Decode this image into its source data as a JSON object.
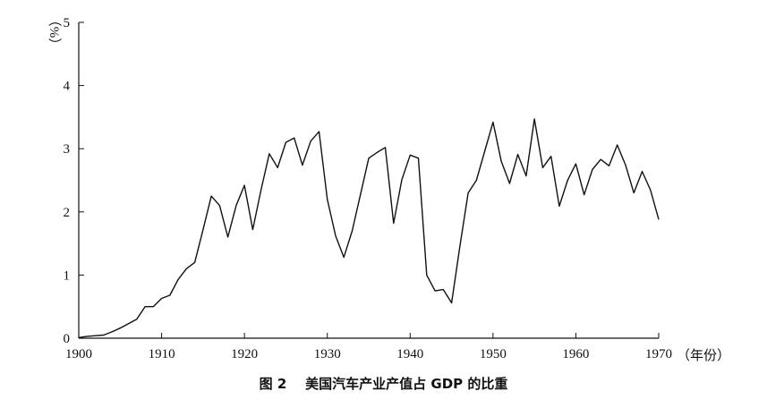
{
  "chart_data": {
    "type": "line",
    "title": "",
    "xlabel": "（年份）",
    "ylabel": "（%）",
    "xlim": [
      1900,
      1970
    ],
    "ylim": [
      0,
      5
    ],
    "xticks": [
      "1900",
      "1910",
      "1920",
      "1930",
      "1940",
      "1950",
      "1960",
      "1970"
    ],
    "yticks": [
      "0",
      "1",
      "2",
      "3",
      "4",
      "5"
    ],
    "grid": false,
    "legend": "none",
    "series": [
      {
        "color": "#111111",
        "x": [
          1900,
          1901,
          1902,
          1903,
          1904,
          1905,
          1906,
          1907,
          1908,
          1909,
          1910,
          1911,
          1912,
          1913,
          1914,
          1915,
          1916,
          1917,
          1918,
          1919,
          1920,
          1921,
          1922,
          1923,
          1924,
          1925,
          1926,
          1927,
          1928,
          1929,
          1930,
          1931,
          1932,
          1933,
          1934,
          1935,
          1936,
          1937,
          1938,
          1939,
          1940,
          1941,
          1942,
          1943,
          1944,
          1945,
          1946,
          1947,
          1948,
          1949,
          1950,
          1951,
          1952,
          1953,
          1954,
          1955,
          1956,
          1957,
          1958,
          1959,
          1960,
          1961,
          1962,
          1963,
          1964,
          1965,
          1966,
          1967,
          1968,
          1969,
          1970
        ],
        "values": [
          0.01,
          0.03,
          0.04,
          0.05,
          0.1,
          0.16,
          0.23,
          0.3,
          0.5,
          0.5,
          0.63,
          0.68,
          0.93,
          1.1,
          1.2,
          1.72,
          2.25,
          2.1,
          1.6,
          2.1,
          2.42,
          1.72,
          2.35,
          2.92,
          2.7,
          3.1,
          3.17,
          2.74,
          3.12,
          3.27,
          2.2,
          1.62,
          1.28,
          1.7,
          2.27,
          2.85,
          2.94,
          3.02,
          1.82,
          2.51,
          2.9,
          2.85,
          1.0,
          0.75,
          0.77,
          0.56,
          1.45,
          2.3,
          2.5,
          2.96,
          3.42,
          2.8,
          2.45,
          2.91,
          2.57,
          3.47,
          2.7,
          2.88,
          2.09,
          2.5,
          2.76,
          2.27,
          2.67,
          2.83,
          2.73,
          3.06,
          2.74,
          2.3,
          2.64,
          2.35,
          1.88
        ]
      }
    ]
  },
  "caption": {
    "figure_number": "图 2",
    "text": "美国汽车产业产值占 GDP 的比重"
  }
}
